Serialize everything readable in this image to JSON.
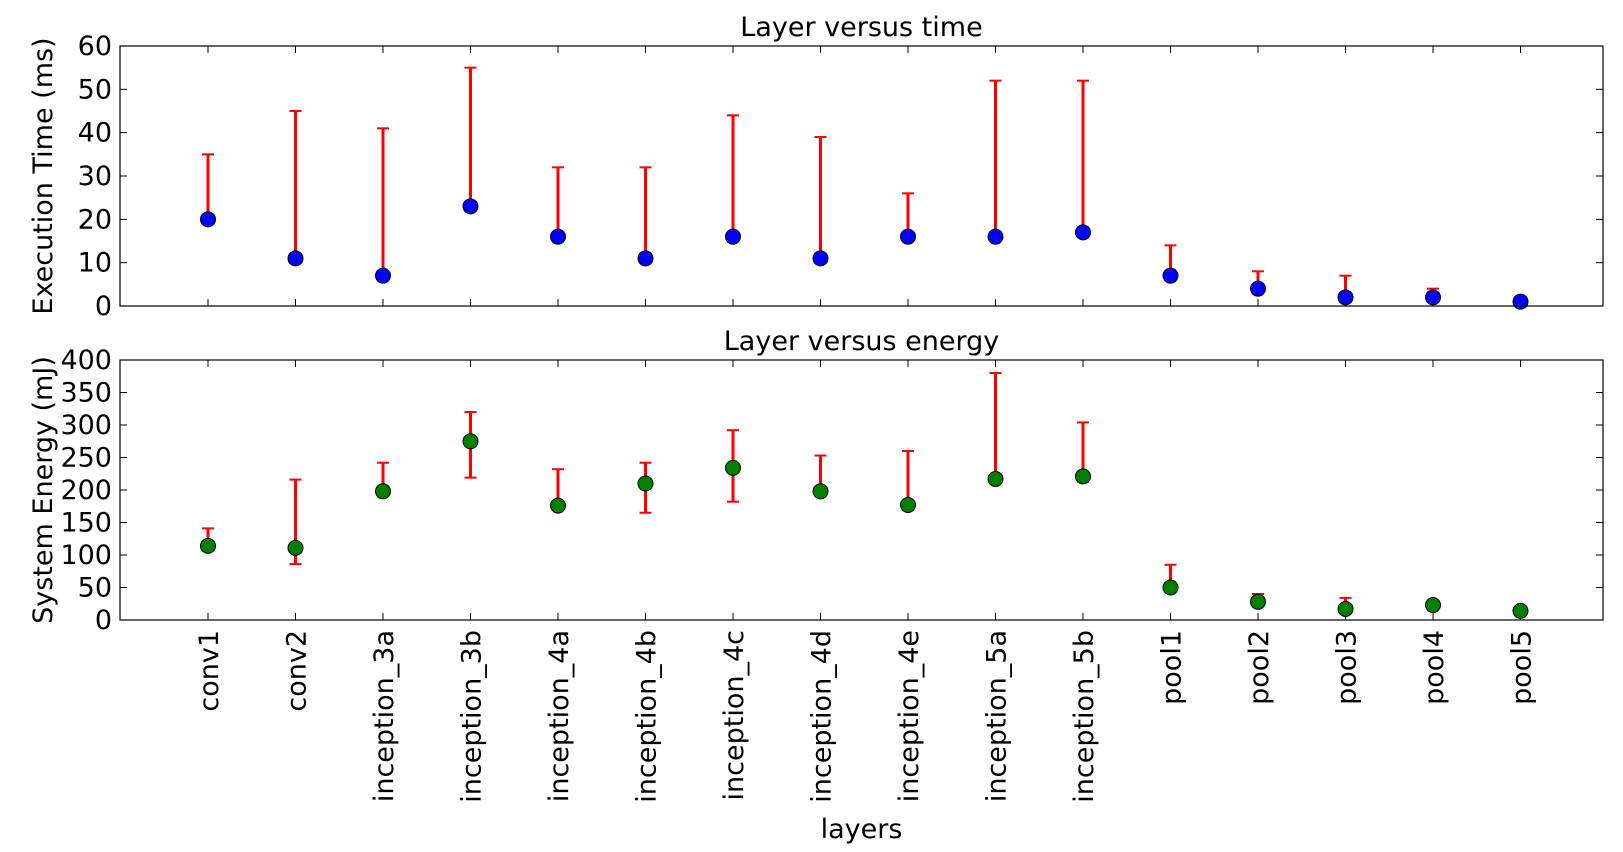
{
  "chart_data": [
    {
      "type": "scatter",
      "title": "Layer versus time",
      "ylabel": "Execution Time (ms)",
      "xlabel": "",
      "ylim": [
        0,
        60
      ],
      "yticks": [
        0,
        10,
        20,
        30,
        40,
        50,
        60
      ],
      "marker_color": "#0000ff",
      "errorbar_color": "#ff0000",
      "categories": [
        "conv1",
        "conv2",
        "inception_3a",
        "inception_3b",
        "inception_4a",
        "inception_4b",
        "inception_4c",
        "inception_4d",
        "inception_4e",
        "inception_5a",
        "inception_5b",
        "pool1",
        "pool2",
        "pool3",
        "pool4",
        "pool5"
      ],
      "values": [
        20,
        11,
        7,
        23,
        16,
        11,
        16,
        11,
        16,
        16,
        17,
        7,
        4,
        2,
        2,
        1
      ],
      "err_low": [
        20,
        11,
        7,
        23,
        16,
        11,
        16,
        11,
        16,
        16,
        17,
        7,
        4,
        2,
        2,
        1
      ],
      "err_high": [
        35,
        45,
        41,
        55,
        32,
        32,
        44,
        39,
        26,
        52,
        52,
        14,
        8,
        7,
        4,
        1
      ]
    },
    {
      "type": "scatter",
      "title": "Layer versus energy",
      "ylabel": "System Energy (mJ)",
      "xlabel": "layers",
      "ylim": [
        0,
        400
      ],
      "yticks": [
        0,
        50,
        100,
        150,
        200,
        250,
        300,
        350,
        400
      ],
      "marker_color": "#008000",
      "errorbar_color": "#ff0000",
      "categories": [
        "conv1",
        "conv2",
        "inception_3a",
        "inception_3b",
        "inception_4a",
        "inception_4b",
        "inception_4c",
        "inception_4d",
        "inception_4e",
        "inception_5a",
        "inception_5b",
        "pool1",
        "pool2",
        "pool3",
        "pool4",
        "pool5"
      ],
      "values": [
        114,
        111,
        198,
        275,
        176,
        210,
        234,
        198,
        177,
        217,
        221,
        50,
        28,
        17,
        23,
        14
      ],
      "err_low": [
        114,
        86,
        198,
        219,
        176,
        165,
        182,
        198,
        177,
        217,
        213,
        50,
        28,
        17,
        23,
        14
      ],
      "err_high": [
        141,
        216,
        242,
        320,
        232,
        242,
        292,
        253,
        260,
        380,
        304,
        85,
        40,
        34,
        23,
        14
      ]
    }
  ]
}
